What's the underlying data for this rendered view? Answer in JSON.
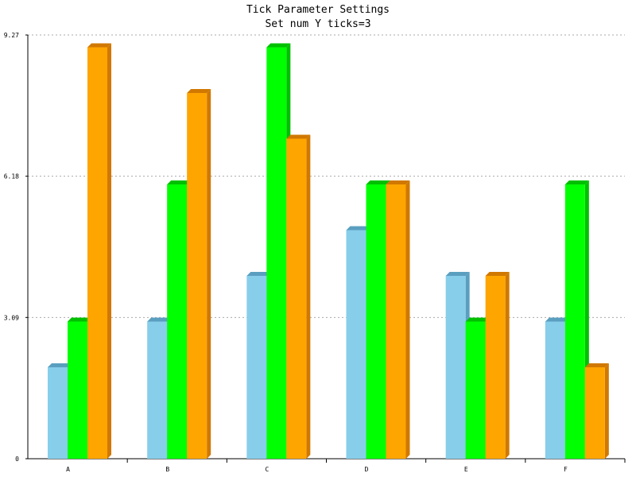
{
  "chart_data": {
    "type": "bar",
    "title": "Tick Parameter Settings",
    "subtitle": "Set num Y ticks=3",
    "categories": [
      "A",
      "B",
      "C",
      "D",
      "E",
      "F"
    ],
    "series": [
      {
        "values": [
          2,
          3,
          4,
          5,
          4,
          3
        ],
        "color": "#87ceeb",
        "side_color": "#5a9fc0"
      },
      {
        "values": [
          3,
          6,
          9,
          6,
          3,
          6
        ],
        "color": "#00ff00",
        "side_color": "#00c000"
      },
      {
        "values": [
          9,
          8,
          7,
          6,
          4,
          2
        ],
        "color": "#ffa500",
        "side_color": "#d07800"
      }
    ],
    "y_ticks": [
      0,
      3.09,
      6.18,
      9.27
    ],
    "y_tick_labels": [
      "0",
      "3.09",
      "6.18",
      "9.27"
    ],
    "ylim": [
      0,
      9.27
    ],
    "grid": true,
    "bar_style": "3d"
  }
}
